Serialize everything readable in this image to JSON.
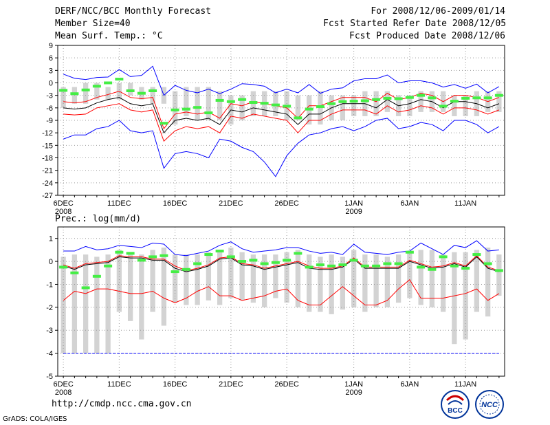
{
  "header": {
    "title": "DERF/NCC/BCC Monthly Forecast",
    "member_size": "Member Size=40",
    "variable": "Mean Surf. Temp.: °C",
    "period": "For 2008/12/06-2009/01/14",
    "fcst_started": "Fcst Started Refer Date 2008/12/05",
    "fcst_produced": "Fcst Produced Date 2008/12/06"
  },
  "footer": {
    "url": "http://cmdp.ncc.cma.gov.cn",
    "grads": "GrADS: COLA/IGES",
    "logo_bcc": "BCC",
    "logo_ncc": "NCC"
  },
  "colors": {
    "max_line": "#0000ff",
    "upper_line": "#ff0000",
    "mean_line": "#000000",
    "bar": "#d3d3d3",
    "marker": "#44ee44",
    "grid": "#999999"
  },
  "chart_data": [
    {
      "type": "bar",
      "title": "Mean Surf. Temp.: °C",
      "ylim": [
        -27,
        9
      ],
      "yticks": [
        9,
        6,
        3,
        0,
        -3,
        -6,
        -9,
        -12,
        -15,
        -18,
        -21,
        -24,
        -27
      ],
      "xtick_labels": [
        "6DEC",
        "11DEC",
        "16DEC",
        "21DEC",
        "26DEC",
        "1JAN",
        "6JAN",
        "11JAN"
      ],
      "xtick_days": [
        1,
        6,
        11,
        16,
        21,
        27,
        32,
        37
      ],
      "year_labels": [
        {
          "day": 1,
          "label": "2008"
        },
        {
          "day": 27,
          "label": "2009"
        }
      ],
      "days": 40,
      "bar_low": [
        -6,
        -5,
        -5,
        -4,
        -4,
        -4,
        -3,
        -4,
        -5,
        -5,
        -10,
        -8,
        -9,
        -9,
        -9,
        -10,
        -9,
        -8,
        -8,
        -8,
        -9,
        -9,
        -10,
        -10,
        -9,
        -9,
        -8,
        -8,
        -8,
        -7,
        -8,
        -8,
        -7,
        -7,
        -7,
        -8,
        -8,
        -8,
        -7,
        -7
      ],
      "bar_high": [
        -1,
        -1,
        0,
        0,
        -1,
        0,
        0,
        -1,
        -1,
        -1,
        -2,
        -1,
        -1,
        -1,
        -2,
        -3,
        -3,
        -2,
        -2,
        -2,
        -2,
        -3,
        -3,
        -2,
        -3,
        -3,
        -3,
        -2,
        -2,
        -2,
        -3,
        -3,
        -2,
        -2,
        -2,
        -3,
        -3,
        -2,
        -2,
        -2
      ],
      "series": [
        {
          "name": "max",
          "values": [
            2.1,
            1.1,
            0.8,
            1.3,
            1.4,
            3.2,
            1.5,
            1.8,
            4.0,
            -3.0,
            -0.6,
            -1.8,
            -2.4,
            -1.5,
            -2.6,
            -1.5,
            -0.2,
            -0.4,
            -0.8,
            -2.4,
            -1.5,
            -2.4,
            -0.4,
            -2.5,
            -1.5,
            -1.2,
            0.5,
            1.0,
            1.0,
            1.9,
            0.0,
            0.5,
            0.5,
            0.0,
            -1.0,
            -0.4,
            -1.3,
            -0.3,
            -2.4,
            -0.9
          ]
        },
        {
          "name": "upper",
          "values": [
            -4.5,
            -4.8,
            -4.5,
            -3.5,
            -2.8,
            -2.0,
            -3.5,
            -3.8,
            -3.5,
            -11.0,
            -7.5,
            -7.0,
            -7.5,
            -7.0,
            -8.5,
            -5.0,
            -5.5,
            -4.5,
            -5.0,
            -5.5,
            -6.0,
            -8.5,
            -5.5,
            -5.5,
            -4.5,
            -3.5,
            -3.5,
            -3.5,
            -4.5,
            -2.5,
            -4.0,
            -3.5,
            -2.5,
            -3.0,
            -4.5,
            -3.0,
            -3.0,
            -3.5,
            -4.5,
            -3.5
          ]
        },
        {
          "name": "mean",
          "values": [
            -6.0,
            -6.3,
            -6.0,
            -4.8,
            -4.0,
            -3.5,
            -5.0,
            -5.5,
            -5.0,
            -12.0,
            -9.0,
            -8.5,
            -9.0,
            -8.5,
            -10.0,
            -6.5,
            -7.0,
            -6.0,
            -6.5,
            -7.0,
            -7.5,
            -10.0,
            -7.5,
            -7.5,
            -6.0,
            -5.0,
            -5.0,
            -5.0,
            -6.0,
            -4.0,
            -5.5,
            -5.0,
            -4.0,
            -4.5,
            -6.0,
            -4.5,
            -4.5,
            -5.0,
            -6.0,
            -5.0
          ]
        },
        {
          "name": "lower",
          "values": [
            -7.5,
            -7.7,
            -7.5,
            -6.0,
            -5.5,
            -5.0,
            -6.5,
            -7.0,
            -6.5,
            -14.0,
            -11.5,
            -10.5,
            -11.0,
            -10.5,
            -12.0,
            -8.0,
            -8.5,
            -7.5,
            -8.0,
            -8.5,
            -9.0,
            -12.0,
            -9.0,
            -9.0,
            -7.5,
            -6.5,
            -6.5,
            -6.5,
            -7.5,
            -5.5,
            -7.0,
            -6.5,
            -5.5,
            -6.0,
            -7.5,
            -6.0,
            -6.0,
            -6.5,
            -7.5,
            -6.5
          ]
        },
        {
          "name": "min",
          "values": [
            -13.5,
            -12.5,
            -12.5,
            -11.0,
            -10.5,
            -9.0,
            -11.5,
            -12.0,
            -11.5,
            -20.5,
            -17.0,
            -16.5,
            -17.0,
            -18.0,
            -13.5,
            -14.0,
            -15.5,
            -16.5,
            -19.0,
            -22.5,
            -17.5,
            -14.5,
            -12.5,
            -12.0,
            -11.0,
            -10.5,
            -11.5,
            -10.5,
            -9.0,
            -8.5,
            -11.0,
            -10.5,
            -9.5,
            -10.0,
            -11.5,
            -9.0,
            -9.0,
            -10.0,
            -12.0,
            -10.5
          ]
        },
        {
          "name": "marker",
          "values": [
            -1.8,
            -2.6,
            -1.7,
            -0.8,
            0.0,
            0.9,
            -1.9,
            -2.5,
            -1.9,
            -9.7,
            -6.5,
            -6.3,
            -5.9,
            -7.2,
            -4.2,
            -4.5,
            -4.0,
            -4.7,
            -4.9,
            -5.3,
            -5.6,
            -8.4,
            -6.3,
            -5.7,
            -5.0,
            -4.5,
            -4.4,
            -4.3,
            -4.0,
            -3.7,
            -3.8,
            -3.5,
            -3.0,
            -3.6,
            -5.6,
            -4.4,
            -3.7,
            -3.6,
            -3.6,
            -3.0
          ]
        }
      ]
    },
    {
      "type": "bar",
      "title": "Prec.: log(mm/d)",
      "ylim": [
        -5,
        1.5
      ],
      "yticks": [
        1,
        0,
        -1,
        -2,
        -3,
        -4,
        -5
      ],
      "xtick_labels": [
        "6DEC",
        "11DEC",
        "16DEC",
        "21DEC",
        "26DEC",
        "1JAN",
        "6JAN",
        "11JAN"
      ],
      "xtick_days": [
        1,
        6,
        11,
        16,
        21,
        27,
        32,
        37
      ],
      "year_labels": [
        {
          "day": 1,
          "label": "2008"
        },
        {
          "day": 27,
          "label": "2009"
        }
      ],
      "days": 40,
      "bar_low": [
        -4,
        -4,
        -4,
        -4,
        -4,
        -2.2,
        -2.6,
        -3.4,
        -2.2,
        -2.8,
        -1.8,
        -1.9,
        -1.9,
        -1.7,
        -1.9,
        -1.6,
        -1.7,
        -1.8,
        -2.0,
        -1.6,
        -1.8,
        -2.0,
        -2.2,
        -2.2,
        -2.3,
        -2.1,
        -2.0,
        -2.2,
        -2.0,
        -2.0,
        -1.8,
        -1.6,
        -1.9,
        -2.0,
        -2.2,
        -3.6,
        -3.4,
        -2.2,
        -2.4,
        -1.5
      ],
      "bar_high": [
        0.2,
        0.3,
        0.3,
        0.2,
        0.3,
        0.5,
        0.4,
        0.3,
        0.5,
        0.6,
        0.3,
        0.3,
        0.3,
        0.4,
        0.5,
        0.6,
        0.4,
        0.3,
        0.3,
        0.3,
        0.4,
        0.5,
        0.3,
        0.2,
        0.3,
        0.2,
        0.5,
        0.3,
        0.3,
        0.2,
        0.3,
        0.4,
        0.5,
        0.5,
        0.3,
        0.4,
        0.4,
        0.5,
        0.6,
        0.3
      ],
      "series": [
        {
          "name": "max",
          "values": [
            0.45,
            0.45,
            0.65,
            0.5,
            0.55,
            0.7,
            0.65,
            0.6,
            0.8,
            0.75,
            0.3,
            0.25,
            0.35,
            0.45,
            0.7,
            0.85,
            0.55,
            0.4,
            0.45,
            0.5,
            0.6,
            0.6,
            0.45,
            0.35,
            0.4,
            0.3,
            0.75,
            0.4,
            0.35,
            0.3,
            0.4,
            0.45,
            0.8,
            0.55,
            0.3,
            0.7,
            0.6,
            0.9,
            0.45,
            0.5
          ]
        },
        {
          "name": "upper",
          "values": [
            -0.15,
            -0.3,
            -0.1,
            -0.05,
            0.0,
            0.25,
            0.2,
            0.2,
            0.1,
            0.1,
            -0.2,
            -0.4,
            -0.3,
            -0.15,
            0.15,
            0.2,
            -0.1,
            -0.15,
            -0.3,
            -0.2,
            -0.1,
            0.0,
            -0.2,
            -0.3,
            -0.3,
            -0.2,
            0.15,
            -0.25,
            -0.25,
            -0.25,
            -0.25,
            0.05,
            -0.1,
            -0.25,
            -0.2,
            -0.05,
            -0.2,
            0.25,
            -0.25,
            -0.4
          ]
        },
        {
          "name": "mean",
          "values": [
            -0.2,
            -0.35,
            -0.15,
            -0.1,
            -0.05,
            0.2,
            0.15,
            0.15,
            0.05,
            0.05,
            -0.3,
            -0.45,
            -0.35,
            -0.2,
            0.1,
            0.15,
            -0.15,
            -0.2,
            -0.35,
            -0.25,
            -0.15,
            -0.05,
            -0.3,
            -0.35,
            -0.35,
            -0.25,
            0.1,
            -0.3,
            -0.3,
            -0.3,
            -0.3,
            0.0,
            -0.15,
            -0.3,
            -0.25,
            -0.1,
            -0.25,
            0.2,
            -0.3,
            -0.45
          ]
        },
        {
          "name": "lower",
          "values": [
            -1.7,
            -1.3,
            -1.4,
            -1.2,
            -1.2,
            -1.3,
            -1.4,
            -1.4,
            -1.3,
            -1.6,
            -1.8,
            -1.6,
            -1.3,
            -1.1,
            -1.5,
            -1.5,
            -1.7,
            -1.6,
            -1.5,
            -1.3,
            -1.2,
            -1.7,
            -1.9,
            -1.9,
            -1.5,
            -1.1,
            -1.5,
            -1.9,
            -1.9,
            -1.7,
            -1.2,
            -0.8,
            -1.6,
            -1.6,
            -1.6,
            -1.5,
            -1.4,
            -1.2,
            -1.7,
            -1.4
          ]
        },
        {
          "name": "bottom",
          "values": [
            -4,
            -4,
            -4,
            -4,
            -4,
            -4,
            -4,
            -4,
            -4,
            -4,
            -4,
            -4,
            -4,
            -4,
            -4,
            -4,
            -4,
            -4,
            -4,
            -4,
            -4,
            -4,
            -4,
            -4,
            -4,
            -4,
            -4,
            -4,
            -4,
            -4,
            -4,
            -4,
            -4,
            -4,
            -4,
            -4,
            -4,
            -4,
            -4,
            -4
          ]
        },
        {
          "name": "marker",
          "values": [
            -0.25,
            -0.5,
            -1.15,
            -0.65,
            -0.2,
            0.4,
            0.35,
            0.05,
            0.2,
            0.25,
            -0.45,
            -0.35,
            -0.1,
            0.3,
            0.45,
            0.2,
            0.0,
            0.05,
            -0.1,
            -0.05,
            0.05,
            0.35,
            -0.25,
            -0.15,
            -0.2,
            -0.15,
            0.05,
            -0.2,
            -0.2,
            -0.1,
            -0.1,
            0.4,
            -0.25,
            -0.35,
            0.2,
            -0.2,
            -0.3,
            0.3,
            -0.1,
            -0.4
          ]
        }
      ]
    }
  ]
}
